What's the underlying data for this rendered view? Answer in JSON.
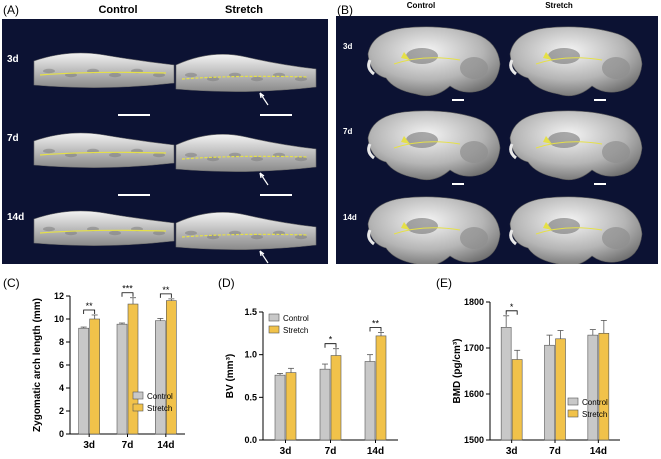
{
  "panel_a": {
    "letter": "(A)",
    "columns": [
      "Control",
      "Stretch"
    ],
    "rows": [
      "3d",
      "7d",
      "14d"
    ]
  },
  "panel_b": {
    "letter": "(B)",
    "columns": [
      "Control",
      "Stretch"
    ],
    "rows": [
      "3d",
      "7d",
      "14d"
    ]
  },
  "colors": {
    "image_background": "#0c1233",
    "control": "#c8c8c8",
    "stretch": "#f1c24a",
    "suture_line": "#e5e048"
  },
  "chart_data": [
    {
      "letter": "(C)",
      "type": "bar",
      "categories": [
        "3d",
        "7d",
        "14d"
      ],
      "ylabel": "Zygomatic arch length (mm)",
      "ylim": [
        0,
        12
      ],
      "yticks": [
        "0",
        "2",
        "4",
        "6",
        "8",
        "10",
        "12"
      ],
      "series": [
        {
          "name": "Control",
          "values": [
            9.2,
            9.55,
            9.85
          ],
          "errors": [
            0.1,
            0.1,
            0.2
          ]
        },
        {
          "name": "Stretch",
          "values": [
            10.0,
            11.3,
            11.6
          ],
          "errors": [
            0.35,
            0.55,
            0.15
          ]
        }
      ],
      "significance": [
        "**",
        "***",
        "**"
      ],
      "legend": "bottom-right"
    },
    {
      "letter": "(D)",
      "type": "bar",
      "categories": [
        "3d",
        "7d",
        "14d"
      ],
      "ylabel": "BV (mm³)",
      "ylim": [
        0,
        1.5
      ],
      "yticks": [
        "0.0",
        "0.5",
        "1.0",
        "1.5"
      ],
      "series": [
        {
          "name": "Control",
          "values": [
            0.76,
            0.83,
            0.92
          ],
          "errors": [
            0.02,
            0.06,
            0.08
          ]
        },
        {
          "name": "Stretch",
          "values": [
            0.79,
            0.99,
            1.22
          ],
          "errors": [
            0.05,
            0.08,
            0.04
          ]
        }
      ],
      "significance": [
        "",
        "*",
        "**"
      ],
      "legend": "top-left"
    },
    {
      "letter": "(E)",
      "type": "bar",
      "categories": [
        "3d",
        "7d",
        "14d"
      ],
      "ylabel": "BMD (pg/cm³)",
      "ylim": [
        1500,
        1800
      ],
      "yticks": [
        "1500",
        "1600",
        "1700",
        "1800"
      ],
      "series": [
        {
          "name": "Control",
          "values": [
            1745,
            1706,
            1728
          ],
          "errors": [
            25,
            22,
            12
          ]
        },
        {
          "name": "Stretch",
          "values": [
            1675,
            1720,
            1732
          ],
          "errors": [
            20,
            18,
            28
          ]
        }
      ],
      "significance": [
        "*",
        "",
        ""
      ],
      "legend": "bottom-right"
    }
  ]
}
